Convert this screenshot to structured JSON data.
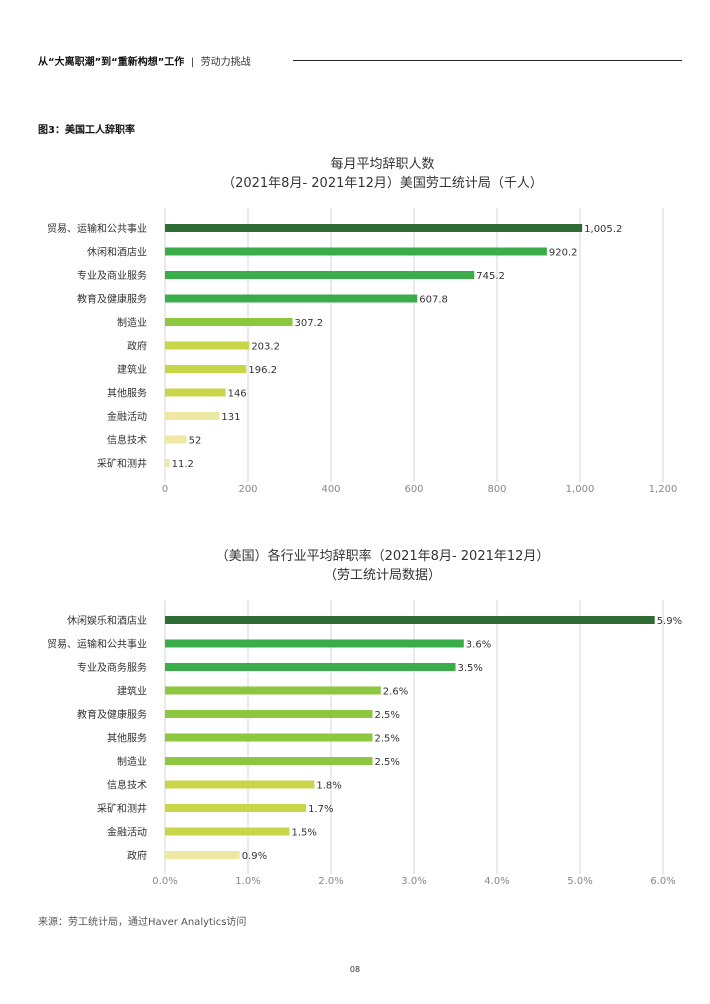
{
  "header": {
    "title": "从“大离职潮”到“重新构想”工作",
    "separator": "|",
    "subtitle": "劳动力挑战"
  },
  "figure_label": "图3：美国工人辞职率",
  "source": "来源：劳工统计局，通过Haver Analytics访问",
  "page_number": "08",
  "chart_data": [
    {
      "type": "bar",
      "orientation": "horizontal",
      "title": "每月平均辞职人数",
      "subtitle": "（2021年8月- 2021年12月）美国劳工统计局（千人）",
      "categories": [
        "贸易、运输和公共事业",
        "休闲和酒店业",
        "专业及商业服务",
        "教育及健康服务",
        "制造业",
        "政府",
        "建筑业",
        "其他服务",
        "金融活动",
        "信息技术",
        "采矿和测井"
      ],
      "values": [
        1005.2,
        920.2,
        745.2,
        607.8,
        307.2,
        203.2,
        196.2,
        146,
        131,
        52,
        11.2
      ],
      "value_labels": [
        "1,005.2",
        "920.2",
        "745.2",
        "607.8",
        "307.2",
        "203.2",
        "196.2",
        "146",
        "131",
        "52",
        "11.2"
      ],
      "bar_colors": [
        "#2f6b34",
        "#3aac4a",
        "#3aac4a",
        "#3aac4a",
        "#8dc63f",
        "#c8d64a",
        "#c8d64a",
        "#c8d64a",
        "#efe8a2",
        "#efe8a2",
        "#efe8a2"
      ],
      "xlim": [
        0,
        1200
      ],
      "xticks": [
        0,
        200,
        400,
        600,
        800,
        1000,
        1200
      ],
      "xtick_labels": [
        "0",
        "200",
        "400",
        "600",
        "800",
        "1,000",
        "1,200"
      ],
      "grid": "vertical"
    },
    {
      "type": "bar",
      "orientation": "horizontal",
      "title": "（美国）各行业平均辞职率（2021年8月- 2021年12月）",
      "subtitle": "（劳工统计局数据）",
      "categories": [
        "休闲娱乐和酒店业",
        "贸易、运输和公共事业",
        "专业及商务服务",
        "建筑业",
        "教育及健康服务",
        "其他服务",
        "制造业",
        "信息技术",
        "采矿和测井",
        "金融活动",
        "政府"
      ],
      "values": [
        5.9,
        3.6,
        3.5,
        2.6,
        2.5,
        2.5,
        2.5,
        1.8,
        1.7,
        1.5,
        0.9
      ],
      "value_labels": [
        "5.9%",
        "3.6%",
        "3.5%",
        "2.6%",
        "2.5%",
        "2.5%",
        "2.5%",
        "1.8%",
        "1.7%",
        "1.5%",
        "0.9%"
      ],
      "bar_colors": [
        "#2f6b34",
        "#3aac4a",
        "#3aac4a",
        "#8dc63f",
        "#8dc63f",
        "#8dc63f",
        "#8dc63f",
        "#c8d64a",
        "#c8d64a",
        "#c8d64a",
        "#efe8a2"
      ],
      "xlim": [
        0,
        6
      ],
      "xticks": [
        0,
        1,
        2,
        3,
        4,
        5,
        6
      ],
      "xtick_labels": [
        "0.0%",
        "1.0%",
        "2.0%",
        "3.0%",
        "4.0%",
        "5.0%",
        "6.0%"
      ],
      "grid": "vertical"
    }
  ]
}
